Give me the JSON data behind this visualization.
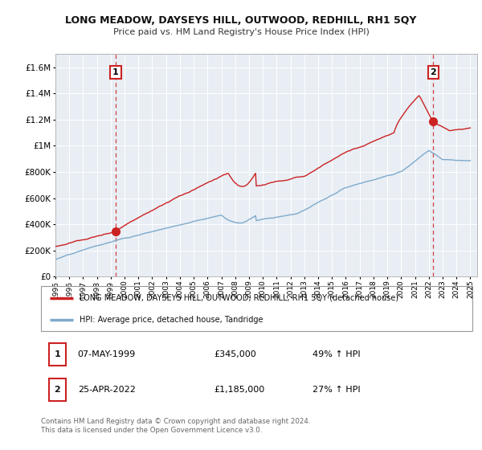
{
  "title": "LONG MEADOW, DAYSEYS HILL, OUTWOOD, REDHILL, RH1 5QY",
  "subtitle": "Price paid vs. HM Land Registry's House Price Index (HPI)",
  "red_label": "LONG MEADOW, DAYSEYS HILL, OUTWOOD, REDHILL, RH1 5QY (detached house)",
  "blue_label": "HPI: Average price, detached house, Tandridge",
  "point1_date": "07-MAY-1999",
  "point1_price": "£345,000",
  "point1_hpi": "49% ↑ HPI",
  "point2_date": "25-APR-2022",
  "point2_price": "£1,185,000",
  "point2_hpi": "27% ↑ HPI",
  "footer": "Contains HM Land Registry data © Crown copyright and database right 2024.\nThis data is licensed under the Open Government Licence v3.0.",
  "red_color": "#cc2222",
  "blue_color": "#7eaacc",
  "point1_x": 1999.35,
  "point2_x": 2022.32,
  "ylim": [
    0,
    1700000
  ],
  "xlim": [
    1995.0,
    2025.5
  ],
  "yticks": [
    0,
    200000,
    400000,
    600000,
    800000,
    1000000,
    1200000,
    1400000,
    1600000
  ],
  "xticks": [
    1995,
    1996,
    1997,
    1998,
    1999,
    2000,
    2001,
    2002,
    2003,
    2004,
    2005,
    2006,
    2007,
    2008,
    2009,
    2010,
    2011,
    2012,
    2013,
    2014,
    2015,
    2016,
    2017,
    2018,
    2019,
    2020,
    2021,
    2022,
    2023,
    2024,
    2025
  ],
  "plot_bg": "#e8eef4",
  "fig_bg": "#ffffff"
}
